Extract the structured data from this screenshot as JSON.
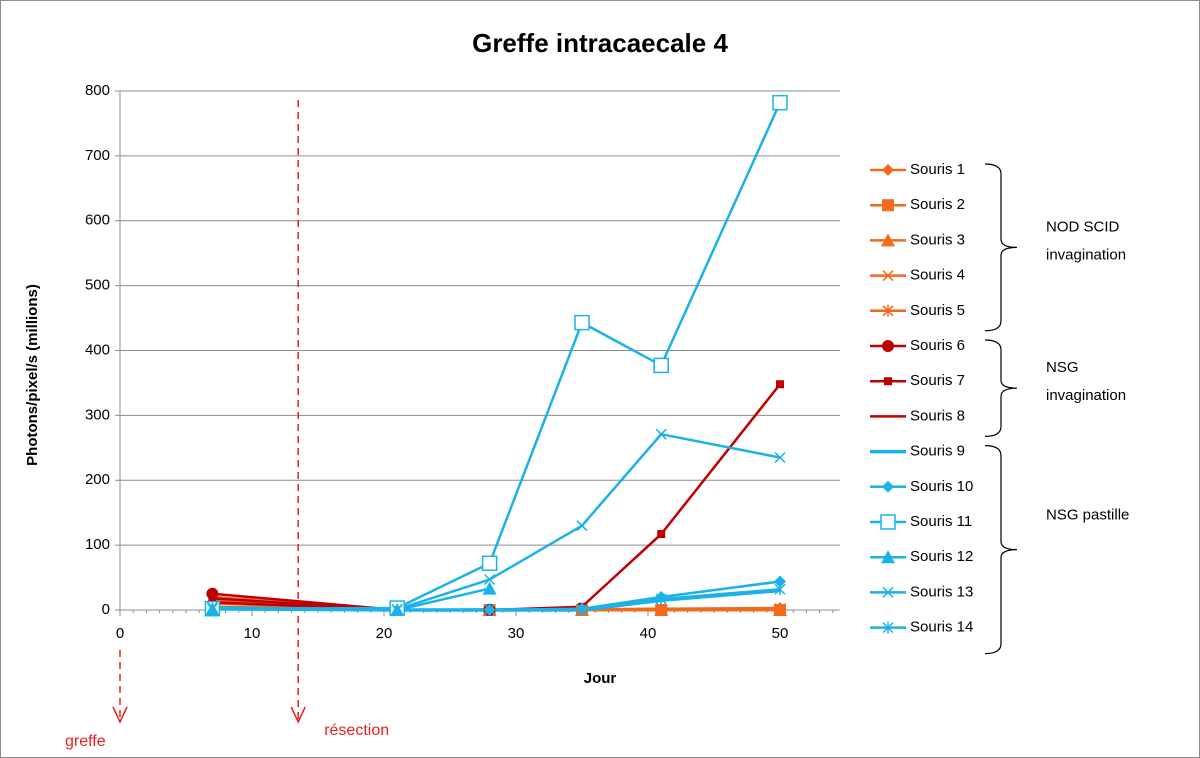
{
  "chart_data": {
    "type": "line",
    "title": "Greffe intracaecale 4",
    "x_label": "Jour",
    "y_label": "Photons/pixel/s  (millions)",
    "x": [
      7,
      21,
      28,
      35,
      41,
      50
    ],
    "xlim": [
      0,
      55
    ],
    "xticks": [
      0,
      10,
      20,
      30,
      40,
      50
    ],
    "ylim": [
      0,
      800
    ],
    "yticks": [
      0,
      100,
      200,
      300,
      400,
      500,
      600,
      700,
      800
    ],
    "grid": true,
    "legend": "right",
    "series": [
      {
        "name": "Souris 1",
        "color": "#f26a1b",
        "marker": "diamond",
        "values": [
          5,
          0,
          0,
          1,
          2,
          3
        ]
      },
      {
        "name": "Souris 2",
        "color": "#f26a1b",
        "marker": "square",
        "values": [
          3,
          0,
          0,
          0,
          0,
          0
        ]
      },
      {
        "name": "Souris 3",
        "color": "#f26a1b",
        "marker": "triangle",
        "values": [
          10,
          0,
          0,
          0,
          0,
          0
        ]
      },
      {
        "name": "Souris 4",
        "color": "#f26a1b",
        "marker": "x",
        "values": [
          15,
          0,
          0,
          0,
          0,
          0
        ]
      },
      {
        "name": "Souris 5",
        "color": "#f26a1b",
        "marker": "star",
        "values": [
          20,
          0,
          0,
          0,
          0,
          2
        ]
      },
      {
        "name": "Souris 6",
        "color": "#c00000",
        "marker": "circle",
        "values": [
          25,
          0,
          0,
          null,
          null,
          null
        ]
      },
      {
        "name": "Souris 7",
        "color": "#c00000",
        "marker": "smallsquare",
        "values": [
          18,
          0,
          0,
          5,
          117,
          348
        ]
      },
      {
        "name": "Souris 8",
        "color": "#c00000",
        "marker": "none",
        "values": [
          12,
          0,
          0,
          3,
          null,
          null
        ]
      },
      {
        "name": "Souris 9",
        "color": "#1ab2e8",
        "marker": "none",
        "values": [
          2,
          0,
          0,
          0,
          15,
          30
        ]
      },
      {
        "name": "Souris 10",
        "color": "#1ab2e8",
        "marker": "diamond",
        "values": [
          3,
          0,
          0,
          2,
          20,
          44
        ]
      },
      {
        "name": "Souris 11",
        "color": "#1ab2e8",
        "marker": "opensquare",
        "values": [
          2,
          3,
          72,
          443,
          377,
          782
        ]
      },
      {
        "name": "Souris 12",
        "color": "#1ab2e8",
        "marker": "triangle",
        "values": [
          1,
          0,
          33,
          null,
          null,
          null
        ]
      },
      {
        "name": "Souris 13",
        "color": "#1ab2e8",
        "marker": "x",
        "values": [
          4,
          1,
          47,
          130,
          271,
          235
        ]
      },
      {
        "name": "Souris 14",
        "color": "#1ab2e8",
        "marker": "star",
        "values": [
          2,
          0,
          1,
          1,
          17,
          32
        ]
      }
    ],
    "groups": [
      {
        "lines": [
          "NOD SCID",
          "invagination"
        ]
      },
      {
        "lines": [
          "NSG",
          "invagination"
        ]
      },
      {
        "lines": [
          "NSG pastille"
        ]
      }
    ],
    "annotations": [
      {
        "text": "greffe",
        "x": 0
      },
      {
        "text": "résection",
        "x": 13.5
      }
    ]
  }
}
